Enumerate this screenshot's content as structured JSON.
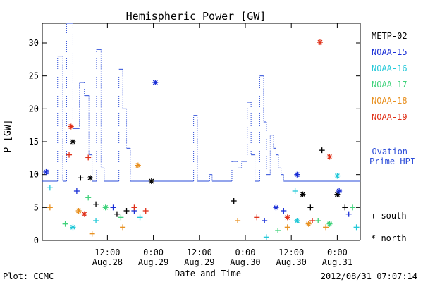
{
  "chart_data": {
    "type": "line",
    "title": "Hemispheric Power [GW]",
    "ylabel": "P [GW]",
    "xlabel": "Date and Time",
    "ylim": [
      0,
      33
    ],
    "xlim": [
      "2012-08-27T19:00",
      "2012-08-31T06:00"
    ],
    "y_ticks": [
      0,
      5,
      10,
      15,
      20,
      25,
      30
    ],
    "x_ticks": [
      {
        "t": "2012-08-28T12:00",
        "top": "12:00",
        "bottom": "Aug.28"
      },
      {
        "t": "2012-08-29T00:00",
        "top": "0:00",
        "bottom": "Aug.29"
      },
      {
        "t": "2012-08-29T12:00",
        "top": "12:00",
        "bottom": "Aug.29"
      },
      {
        "t": "2012-08-30T00:00",
        "top": "0:00",
        "bottom": "Aug.30"
      },
      {
        "t": "2012-08-30T12:00",
        "top": "12:00",
        "bottom": "Aug.30"
      },
      {
        "t": "2012-08-31T00:00",
        "top": "0:00",
        "bottom": "Aug.31"
      }
    ],
    "grid": false,
    "legend_position": "right",
    "series": [
      {
        "name": "METP-02",
        "color": "#000000",
        "north": [
          [
            "2012-08-28T03:00",
            15.0
          ],
          [
            "2012-08-28T07:30",
            9.5
          ],
          [
            "2012-08-28T23:30",
            9.0
          ],
          [
            "2012-08-30T15:00",
            7.0
          ],
          [
            "2012-08-31T00:00",
            7.0
          ]
        ],
        "south": [
          [
            "2012-08-28T05:00",
            9.5
          ],
          [
            "2012-08-28T09:00",
            5.5
          ],
          [
            "2012-08-28T14:30",
            4.0
          ],
          [
            "2012-08-30T20:00",
            13.7
          ],
          [
            "2012-08-31T02:00",
            5.0
          ],
          [
            "2012-08-30T17:00",
            5.0
          ],
          [
            "2012-08-29T21:00",
            6.0
          ],
          [
            "2012-08-28T17:00",
            4.5
          ]
        ]
      },
      {
        "name": "NOAA-15",
        "color": "#1a2fd6",
        "north": [
          [
            "2012-08-27T20:00",
            10.4
          ],
          [
            "2012-08-29T00:30",
            24.0
          ],
          [
            "2012-08-30T13:30",
            10.0
          ],
          [
            "2012-08-31T00:30",
            7.5
          ],
          [
            "2012-08-30T08:00",
            5.0
          ]
        ],
        "south": [
          [
            "2012-08-28T04:00",
            7.5
          ],
          [
            "2012-08-28T13:30",
            5.0
          ],
          [
            "2012-08-30T10:00",
            4.5
          ],
          [
            "2012-08-30T05:00",
            3.0
          ],
          [
            "2012-08-31T03:00",
            4.0
          ],
          [
            "2012-08-28T19:00",
            4.5
          ]
        ]
      },
      {
        "name": "NOAA-16",
        "color": "#22c8d8",
        "north": [
          [
            "2012-08-31T00:00",
            9.8
          ],
          [
            "2012-08-30T13:30",
            3.0
          ],
          [
            "2012-08-28T03:00",
            2.0
          ]
        ],
        "south": [
          [
            "2012-08-30T13:00",
            7.5
          ],
          [
            "2012-08-28T09:00",
            3.0
          ],
          [
            "2012-08-30T05:30",
            0.5
          ],
          [
            "2012-08-28T20:30",
            3.5
          ],
          [
            "2012-08-31T05:00",
            2.0
          ],
          [
            "2012-08-27T21:00",
            8.0
          ]
        ]
      },
      {
        "name": "NOAA-17",
        "color": "#3fd27a",
        "north": [
          [
            "2012-08-30T22:00",
            2.5
          ],
          [
            "2012-08-28T11:30",
            5.0
          ]
        ],
        "south": [
          [
            "2012-08-28T07:00",
            6.5
          ],
          [
            "2012-08-30T08:30",
            1.5
          ],
          [
            "2012-08-30T19:00",
            3.0
          ],
          [
            "2012-08-28T15:30",
            3.5
          ],
          [
            "2012-08-31T04:00",
            5.0
          ],
          [
            "2012-08-28T01:00",
            2.5
          ]
        ]
      },
      {
        "name": "NOAA-18",
        "color": "#e89020",
        "north": [
          [
            "2012-08-28T20:00",
            11.4
          ],
          [
            "2012-08-28T04:30",
            4.5
          ],
          [
            "2012-08-30T16:30",
            2.5
          ]
        ],
        "south": [
          [
            "2012-08-27T21:00",
            5.0
          ],
          [
            "2012-08-28T16:00",
            2.0
          ],
          [
            "2012-08-30T11:00",
            2.0
          ],
          [
            "2012-08-28T08:00",
            1.0
          ],
          [
            "2012-08-30T21:00",
            2.0
          ],
          [
            "2012-08-29T22:00",
            3.0
          ]
        ]
      },
      {
        "name": "NOAA-19",
        "color": "#e03018",
        "north": [
          [
            "2012-08-28T02:30",
            17.3
          ],
          [
            "2012-08-30T19:30",
            30.1
          ],
          [
            "2012-08-30T22:00",
            12.7
          ],
          [
            "2012-08-30T11:00",
            3.5
          ],
          [
            "2012-08-28T06:00",
            4.0
          ]
        ],
        "south": [
          [
            "2012-08-28T02:00",
            13.0
          ],
          [
            "2012-08-28T07:00",
            12.6
          ],
          [
            "2012-08-28T19:00",
            5.0
          ],
          [
            "2012-08-30T03:00",
            3.5
          ],
          [
            "2012-08-30T17:30",
            3.0
          ],
          [
            "2012-08-28T22:00",
            4.5
          ]
        ]
      },
      {
        "name": "— Ovation Prime HPI",
        "color": "#2a4bd8",
        "line": [
          [
            "2012-08-27T19:00",
            9
          ],
          [
            "2012-08-27T23:00",
            28
          ],
          [
            "2012-08-28T00:20",
            9
          ],
          [
            "2012-08-28T01:20",
            33
          ],
          [
            "2012-08-28T03:00",
            17
          ],
          [
            "2012-08-28T04:40",
            24
          ],
          [
            "2012-08-28T06:00",
            22
          ],
          [
            "2012-08-28T07:10",
            13
          ],
          [
            "2012-08-28T08:00",
            9
          ],
          [
            "2012-08-28T09:10",
            29
          ],
          [
            "2012-08-28T10:20",
            11
          ],
          [
            "2012-08-28T11:10",
            9
          ],
          [
            "2012-08-28T15:00",
            26
          ],
          [
            "2012-08-28T16:00",
            20
          ],
          [
            "2012-08-28T17:00",
            14
          ],
          [
            "2012-08-28T18:00",
            9
          ],
          [
            "2012-08-29T10:30",
            19
          ],
          [
            "2012-08-29T11:30",
            9
          ],
          [
            "2012-08-29T14:40",
            10
          ],
          [
            "2012-08-29T15:20",
            9
          ],
          [
            "2012-08-29T20:30",
            12
          ],
          [
            "2012-08-29T22:00",
            11
          ],
          [
            "2012-08-29T23:00",
            12
          ],
          [
            "2012-08-30T00:30",
            21
          ],
          [
            "2012-08-30T01:30",
            13
          ],
          [
            "2012-08-30T02:30",
            9
          ],
          [
            "2012-08-30T03:00",
            9
          ],
          [
            "2012-08-30T03:45",
            25
          ],
          [
            "2012-08-30T04:45",
            18
          ],
          [
            "2012-08-30T05:30",
            10
          ],
          [
            "2012-08-30T06:30",
            16
          ],
          [
            "2012-08-30T07:20",
            14
          ],
          [
            "2012-08-30T08:00",
            13
          ],
          [
            "2012-08-30T08:40",
            11
          ],
          [
            "2012-08-30T09:20",
            10
          ],
          [
            "2012-08-30T10:00",
            9
          ],
          [
            "2012-08-31T06:00",
            9
          ]
        ]
      }
    ],
    "legend_south_label": "+ south",
    "legend_north_label": "* north"
  },
  "footer": {
    "plot_credit": "Plot: CCMC",
    "timestamp": "2012/08/31 07:07:14"
  },
  "legend_extra": {
    "ovation_line1": "— Ovation",
    "ovation_line2": "Prime HPI"
  }
}
